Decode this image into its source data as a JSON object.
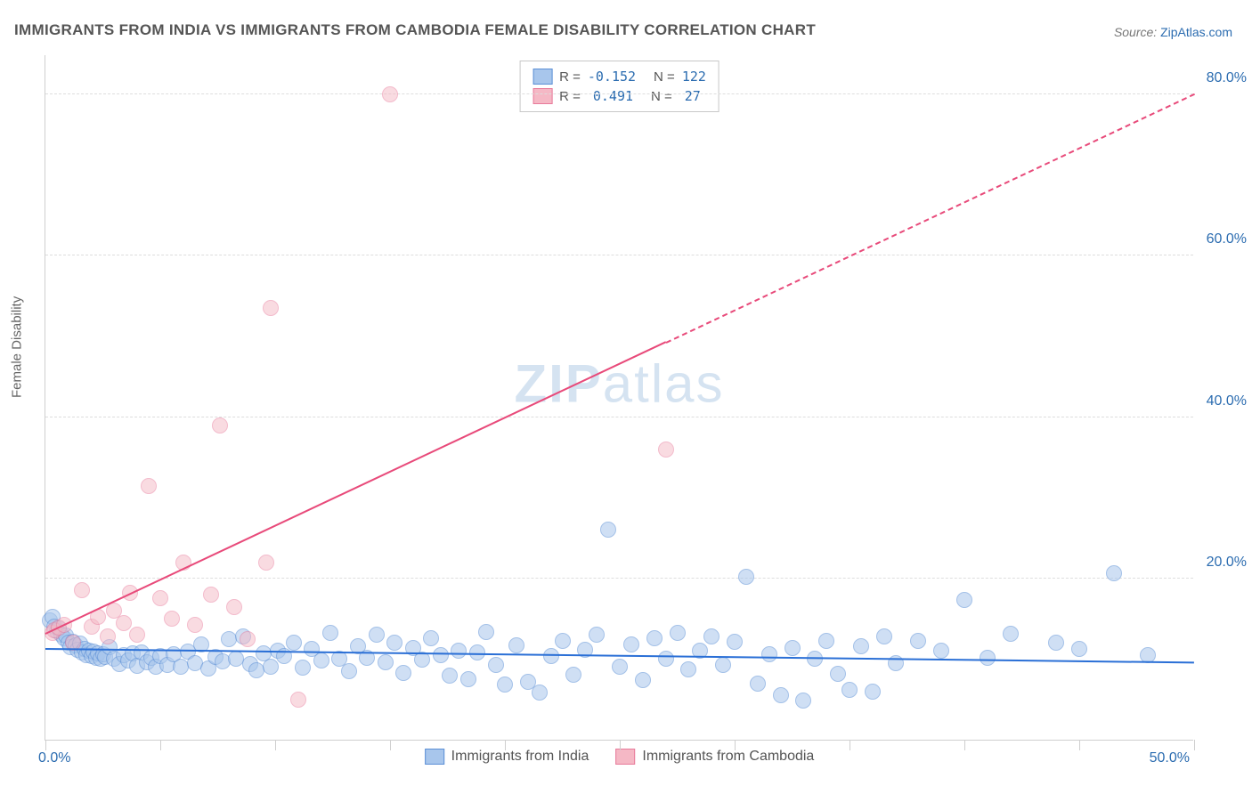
{
  "title": "IMMIGRANTS FROM INDIA VS IMMIGRANTS FROM CAMBODIA FEMALE DISABILITY CORRELATION CHART",
  "source": {
    "prefix": "Source: ",
    "name": "ZipAtlas.com"
  },
  "y_axis_label": "Female Disability",
  "watermark": {
    "bold": "ZIP",
    "rest": "atlas"
  },
  "chart": {
    "type": "scatter",
    "background_color": "#ffffff",
    "grid_color": "#dddddd",
    "axis_color": "#cfcfcf",
    "xlim": [
      0,
      50
    ],
    "ylim": [
      0,
      85
    ],
    "x_ticks": [
      0,
      5,
      10,
      15,
      20,
      25,
      30,
      35,
      40,
      45,
      50
    ],
    "x_tick_labels": {
      "0": "0.0%",
      "50": "50.0%"
    },
    "y_ticks": [
      20,
      40,
      60,
      80
    ],
    "y_tick_labels": {
      "20": "20.0%",
      "40": "40.0%",
      "60": "60.0%",
      "80": "80.0%"
    },
    "series": [
      {
        "id": "india",
        "label": "Immigrants from India",
        "color_fill": "#a8c6ec",
        "color_stroke": "#5b8fd6",
        "fill_opacity": 0.55,
        "marker_radius": 9,
        "R": "-0.152",
        "N": "122",
        "trend": {
          "x1": 0,
          "y1": 11.2,
          "x2": 50,
          "y2": 9.5,
          "color": "#2a6fd6",
          "width": 2,
          "dashed_from_x": null
        },
        "points": [
          [
            0.2,
            14.8
          ],
          [
            0.3,
            15.2
          ],
          [
            0.4,
            14.0
          ],
          [
            0.5,
            13.5
          ],
          [
            0.6,
            13.8
          ],
          [
            0.7,
            13.0
          ],
          [
            0.8,
            12.6
          ],
          [
            0.9,
            12.9
          ],
          [
            1.0,
            12.0
          ],
          [
            1.1,
            11.5
          ],
          [
            1.2,
            12.1
          ],
          [
            1.3,
            11.7
          ],
          [
            1.4,
            11.2
          ],
          [
            1.5,
            11.9
          ],
          [
            1.6,
            10.8
          ],
          [
            1.7,
            11.3
          ],
          [
            1.8,
            10.5
          ],
          [
            1.9,
            11.0
          ],
          [
            2.0,
            10.4
          ],
          [
            2.1,
            10.9
          ],
          [
            2.2,
            10.2
          ],
          [
            2.3,
            10.7
          ],
          [
            2.4,
            10.0
          ],
          [
            2.5,
            10.6
          ],
          [
            2.6,
            10.3
          ],
          [
            2.8,
            11.5
          ],
          [
            3.0,
            10.1
          ],
          [
            3.2,
            9.4
          ],
          [
            3.4,
            10.5
          ],
          [
            3.6,
            9.8
          ],
          [
            3.8,
            10.7
          ],
          [
            4.0,
            9.2
          ],
          [
            4.2,
            10.8
          ],
          [
            4.4,
            9.6
          ],
          [
            4.6,
            10.2
          ],
          [
            4.8,
            9.1
          ],
          [
            5.0,
            10.4
          ],
          [
            5.3,
            9.3
          ],
          [
            5.6,
            10.6
          ],
          [
            5.9,
            9.0
          ],
          [
            6.2,
            10.9
          ],
          [
            6.5,
            9.5
          ],
          [
            6.8,
            11.8
          ],
          [
            7.1,
            8.8
          ],
          [
            7.4,
            10.3
          ],
          [
            7.7,
            9.7
          ],
          [
            8.0,
            12.5
          ],
          [
            8.3,
            10.1
          ],
          [
            8.6,
            12.8
          ],
          [
            8.9,
            9.4
          ],
          [
            9.2,
            8.6
          ],
          [
            9.5,
            10.7
          ],
          [
            9.8,
            9.1
          ],
          [
            10.1,
            11.0
          ],
          [
            10.4,
            10.4
          ],
          [
            10.8,
            12.0
          ],
          [
            11.2,
            8.9
          ],
          [
            11.6,
            11.3
          ],
          [
            12.0,
            9.8
          ],
          [
            12.4,
            13.2
          ],
          [
            12.8,
            10.0
          ],
          [
            13.2,
            8.5
          ],
          [
            13.6,
            11.6
          ],
          [
            14.0,
            10.2
          ],
          [
            14.4,
            13.0
          ],
          [
            14.8,
            9.6
          ],
          [
            15.2,
            12.0
          ],
          [
            15.6,
            8.3
          ],
          [
            16.0,
            11.4
          ],
          [
            16.4,
            9.9
          ],
          [
            16.8,
            12.6
          ],
          [
            17.2,
            10.5
          ],
          [
            17.6,
            8.0
          ],
          [
            18.0,
            11.0
          ],
          [
            18.4,
            7.5
          ],
          [
            18.8,
            10.8
          ],
          [
            19.2,
            13.4
          ],
          [
            19.6,
            9.3
          ],
          [
            20.0,
            6.8
          ],
          [
            20.5,
            11.7
          ],
          [
            21.0,
            7.2
          ],
          [
            21.5,
            5.8
          ],
          [
            22.0,
            10.4
          ],
          [
            22.5,
            12.2
          ],
          [
            23.0,
            8.1
          ],
          [
            23.5,
            11.2
          ],
          [
            24.0,
            13.0
          ],
          [
            24.5,
            26.0
          ],
          [
            25.0,
            9.0
          ],
          [
            25.5,
            11.8
          ],
          [
            26.0,
            7.4
          ],
          [
            26.5,
            12.6
          ],
          [
            27.0,
            10.1
          ],
          [
            27.5,
            13.2
          ],
          [
            28.0,
            8.7
          ],
          [
            28.5,
            11.0
          ],
          [
            29.0,
            12.8
          ],
          [
            29.5,
            9.3
          ],
          [
            30.0,
            12.1
          ],
          [
            30.5,
            20.2
          ],
          [
            31.0,
            7.0
          ],
          [
            31.5,
            10.6
          ],
          [
            32.0,
            5.5
          ],
          [
            32.5,
            11.4
          ],
          [
            33.0,
            4.9
          ],
          [
            33.5,
            10.0
          ],
          [
            34.0,
            12.3
          ],
          [
            34.5,
            8.2
          ],
          [
            35.0,
            6.2
          ],
          [
            35.5,
            11.6
          ],
          [
            36.0,
            6.0
          ],
          [
            36.5,
            12.8
          ],
          [
            37.0,
            9.5
          ],
          [
            38.0,
            12.2
          ],
          [
            39.0,
            11.0
          ],
          [
            40.0,
            17.3
          ],
          [
            41.0,
            10.2
          ],
          [
            42.0,
            13.1
          ],
          [
            44.0,
            12.0
          ],
          [
            45.0,
            11.3
          ],
          [
            46.5,
            20.6
          ],
          [
            48.0,
            10.5
          ]
        ]
      },
      {
        "id": "cambodia",
        "label": "Immigrants from Cambodia",
        "color_fill": "#f5b8c5",
        "color_stroke": "#e87a9a",
        "fill_opacity": 0.5,
        "marker_radius": 9,
        "R": "0.491",
        "N": "27",
        "trend": {
          "x1": 0,
          "y1": 13.0,
          "x2": 50,
          "y2": 80.0,
          "color": "#e84a7a",
          "width": 2,
          "dashed_from_x": 27
        },
        "points": [
          [
            0.3,
            13.3
          ],
          [
            0.4,
            13.6
          ],
          [
            0.6,
            13.9
          ],
          [
            0.8,
            14.2
          ],
          [
            1.2,
            12.0
          ],
          [
            1.6,
            18.5
          ],
          [
            2.0,
            14.0
          ],
          [
            2.3,
            15.2
          ],
          [
            2.7,
            12.8
          ],
          [
            3.0,
            16.0
          ],
          [
            3.4,
            14.5
          ],
          [
            3.7,
            18.2
          ],
          [
            4.0,
            13.0
          ],
          [
            4.5,
            31.5
          ],
          [
            5.0,
            17.5
          ],
          [
            5.5,
            15.0
          ],
          [
            6.0,
            22.0
          ],
          [
            6.5,
            14.2
          ],
          [
            7.2,
            18.0
          ],
          [
            7.6,
            39.0
          ],
          [
            8.2,
            16.5
          ],
          [
            8.8,
            12.5
          ],
          [
            9.6,
            22.0
          ],
          [
            9.8,
            53.5
          ],
          [
            11.0,
            5.0
          ],
          [
            15.0,
            80.0
          ],
          [
            27.0,
            36.0
          ]
        ]
      }
    ]
  }
}
